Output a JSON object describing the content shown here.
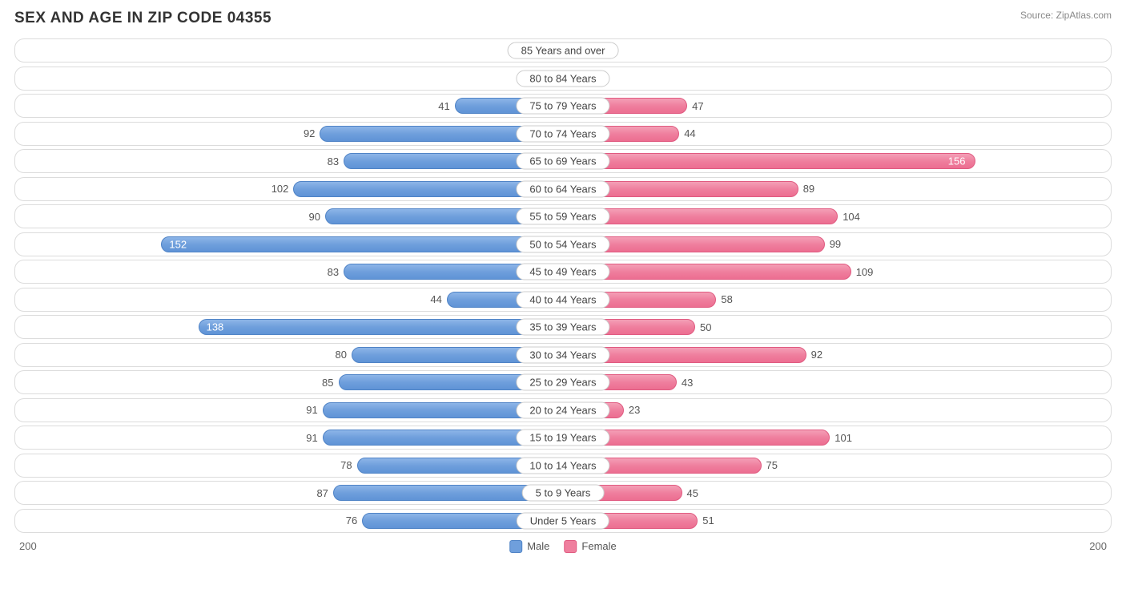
{
  "header": {
    "title": "SEX AND AGE IN ZIP CODE 04355",
    "source": "Source: ZipAtlas.com"
  },
  "chart": {
    "type": "bar",
    "orientation": "diverging-horizontal",
    "axis_max": 200,
    "axis_left_label": "200",
    "axis_right_label": "200",
    "male_color": "#6f9fdc",
    "female_color": "#ef7f9e",
    "row_border_color": "#dcdcdc",
    "background_color": "#ffffff",
    "inside_label_threshold": 120,
    "rows": [
      {
        "label": "85 Years and over",
        "male": 0,
        "female": 13
      },
      {
        "label": "80 to 84 Years",
        "male": 0,
        "female": 4
      },
      {
        "label": "75 to 79 Years",
        "male": 41,
        "female": 47
      },
      {
        "label": "70 to 74 Years",
        "male": 92,
        "female": 44
      },
      {
        "label": "65 to 69 Years",
        "male": 83,
        "female": 156
      },
      {
        "label": "60 to 64 Years",
        "male": 102,
        "female": 89
      },
      {
        "label": "55 to 59 Years",
        "male": 90,
        "female": 104
      },
      {
        "label": "50 to 54 Years",
        "male": 152,
        "female": 99
      },
      {
        "label": "45 to 49 Years",
        "male": 83,
        "female": 109
      },
      {
        "label": "40 to 44 Years",
        "male": 44,
        "female": 58
      },
      {
        "label": "35 to 39 Years",
        "male": 138,
        "female": 50
      },
      {
        "label": "30 to 34 Years",
        "male": 80,
        "female": 92
      },
      {
        "label": "25 to 29 Years",
        "male": 85,
        "female": 43
      },
      {
        "label": "20 to 24 Years",
        "male": 91,
        "female": 23
      },
      {
        "label": "15 to 19 Years",
        "male": 91,
        "female": 101
      },
      {
        "label": "10 to 14 Years",
        "male": 78,
        "female": 75
      },
      {
        "label": "5 to 9 Years",
        "male": 87,
        "female": 45
      },
      {
        "label": "Under 5 Years",
        "male": 76,
        "female": 51
      }
    ]
  },
  "legend": {
    "male_label": "Male",
    "female_label": "Female"
  }
}
